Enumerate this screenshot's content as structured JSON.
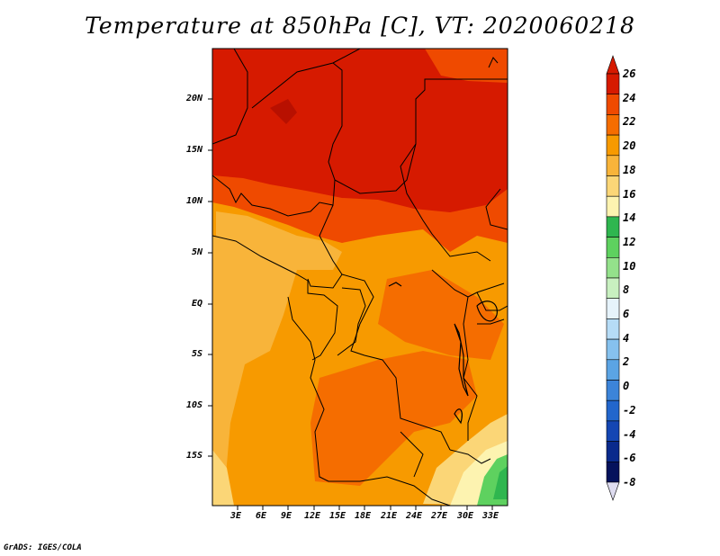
{
  "title": "Temperature at 850hPa [C], VT: 2020060218",
  "credit": "GrADS: IGES/COLA",
  "map": {
    "lon_range": [
      0,
      34.5
    ],
    "lat_range": [
      -19.5,
      25
    ],
    "x_tick_labels": [
      "3E",
      "6E",
      "9E",
      "12E",
      "15E",
      "18E",
      "21E",
      "24E",
      "27E",
      "30E",
      "33E"
    ],
    "y_tick_labels": [
      "20N",
      "15N",
      "10N",
      "5N",
      "EQ",
      "5S",
      "10S",
      "15S"
    ],
    "field": "Temperature at 850hPa",
    "units": "C"
  },
  "colorbar": {
    "labels": [
      "26",
      "24",
      "22",
      "20",
      "18",
      "16",
      "14",
      "12",
      "10",
      "8",
      "6",
      "4",
      "2",
      "0",
      "-2",
      "-4",
      "-6",
      "-8"
    ],
    "colors": [
      "#6e0000",
      "#d61a00",
      "#ef4a00",
      "#f56d00",
      "#f79a00",
      "#f8b43a",
      "#fbd677",
      "#fdf3b0",
      "#2fb64f",
      "#5ed15f",
      "#94e18b",
      "#c8f0c0",
      "#e6f3fb",
      "#b6dcf6",
      "#86c1ee",
      "#5ba4e4",
      "#3c84d9",
      "#2266cc",
      "#1446b3",
      "#0a2a8c",
      "#05125c",
      "#dedcf0"
    ]
  }
}
